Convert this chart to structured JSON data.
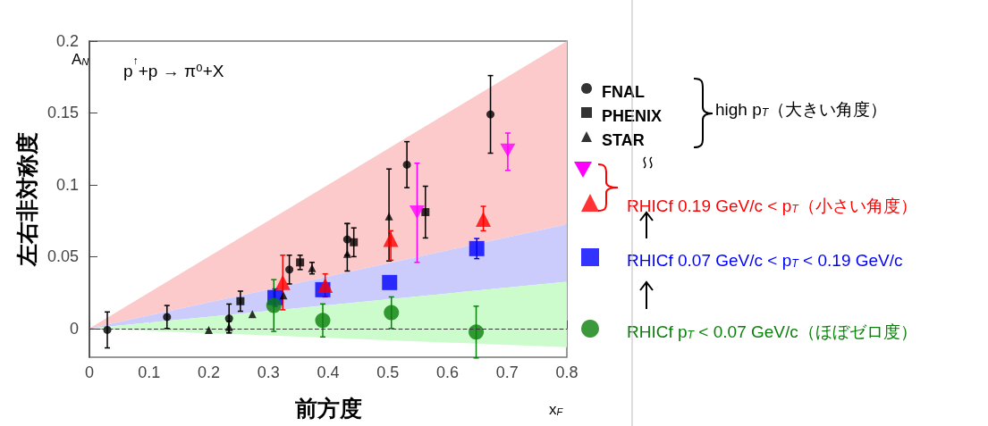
{
  "chart_data": {
    "type": "scatter",
    "xlabel": "前方度",
    "ylabel": "左右非対称度",
    "annotations": [
      "p$^{↑}$+p → π⁰+X",
      "A$_{N}$",
      "x$_{F}$",
      "high p$_{T}$（大きい角度）"
    ],
    "xlim": [
      0,
      0.8
    ],
    "xticks": [
      0,
      0.1,
      0.2,
      0.3,
      0.4,
      0.5,
      0.6,
      0.7,
      0.8
    ],
    "ylim": [
      -0.02,
      0.2
    ],
    "yticks": [
      0,
      0.05,
      0.1,
      0.15,
      0.2
    ],
    "grid": false,
    "legend": "right",
    "ref_lines": [
      {
        "axis": "y",
        "value": 0,
        "color": "#333333",
        "line_style": "dashed"
      }
    ],
    "series": [
      {
        "type": "line",
        "color": "#fccaca",
        "x": [
          0,
          0.8
        ],
        "values": [
          null,
          null
        ],
        "lower": [
          0,
          0.0725
        ],
        "upper": [
          0,
          0.2
        ]
      },
      {
        "type": "line",
        "color": "#ccccfc",
        "x": [
          0,
          0.8
        ],
        "values": [
          null,
          null
        ],
        "lower": [
          0,
          0.0325
        ],
        "upper": [
          0,
          0.0725
        ]
      },
      {
        "type": "line",
        "color": "#ccfccc",
        "x": [
          0,
          0.8
        ],
        "values": [
          null,
          null
        ],
        "lower": [
          0,
          -0.013
        ],
        "upper": [
          0,
          0.0325
        ]
      },
      {
        "name": "FNAL",
        "marker": "circle",
        "color": "#000000",
        "x": [
          0.03,
          0.13,
          0.234,
          0.335,
          0.432,
          0.532,
          0.672
        ],
        "values": [
          -0.001,
          0.008,
          0.007,
          0.041,
          0.062,
          0.114,
          0.149
        ],
        "errors": [
          0.0125,
          0.008,
          0.01,
          0.01,
          0.011,
          0.016,
          0.027
        ]
      },
      {
        "name": "PHENIX",
        "marker": "square",
        "color": "#000000",
        "x": [
          0.253,
          0.353,
          0.443,
          0.563
        ],
        "values": [
          0.019,
          0.046,
          0.06,
          0.081
        ],
        "errors": [
          0.007,
          0.005,
          0.01,
          0.018
        ]
      },
      {
        "name": "STAR",
        "marker": "triangle",
        "color": "#000000",
        "x": [
          0.2,
          0.234,
          0.273,
          0.325,
          0.373,
          0.432,
          0.502
        ],
        "values": [
          -0.001,
          0.001,
          0.01,
          0.023,
          0.042,
          0.052,
          0.078
        ],
        "errors": [
          null,
          0.004,
          null,
          null,
          0.004,
          [
            0.04,
            0.073
          ],
          [
            0.047,
            0.111
          ]
        ]
      },
      {
        "name": "RHICf 0.19 GeV/c < p$_{T}$（小さい角度）",
        "marker": "triangle",
        "color": "#ff0000",
        "x": [
          0.324,
          0.395,
          0.505,
          0.66
        ],
        "values": [
          0.032,
          0.03,
          0.062,
          0.076
        ],
        "errors": [
          0.019,
          0.008,
          [
            0.0475,
            0.068
          ],
          [
            0.068,
            0.085
          ]
        ]
      },
      {
        "marker": "triangle_down",
        "color": "#ff00ff",
        "x": [
          0.549,
          0.701
        ],
        "values": [
          0.081,
          0.124
        ],
        "errors": [
          [
            0.046,
            0.115
          ],
          [
            0.11,
            0.136
          ]
        ]
      },
      {
        "name": "RHICf 0.07 GeV/c < p$_{T}$ < 0.19 GeV/c",
        "marker": "square",
        "color": "#0000ff",
        "x": [
          0.311,
          0.391,
          0.503,
          0.649
        ],
        "values": [
          0.0215,
          0.027,
          0.032,
          0.0556
        ],
        "errors": [
          0.006,
          null,
          null,
          0.007
        ]
      },
      {
        "name": "RHICf p$_{T}$ < 0.07 GeV/c（ほぼゼロ度）",
        "marker": "circle",
        "color": "#0a800a",
        "x": [
          0.309,
          0.391,
          0.506,
          0.648
        ],
        "values": [
          0.016,
          0.0056,
          0.011,
          -0.0025
        ],
        "errors": [
          0.018,
          0.0115,
          0.011,
          0.018
        ]
      }
    ]
  }
}
